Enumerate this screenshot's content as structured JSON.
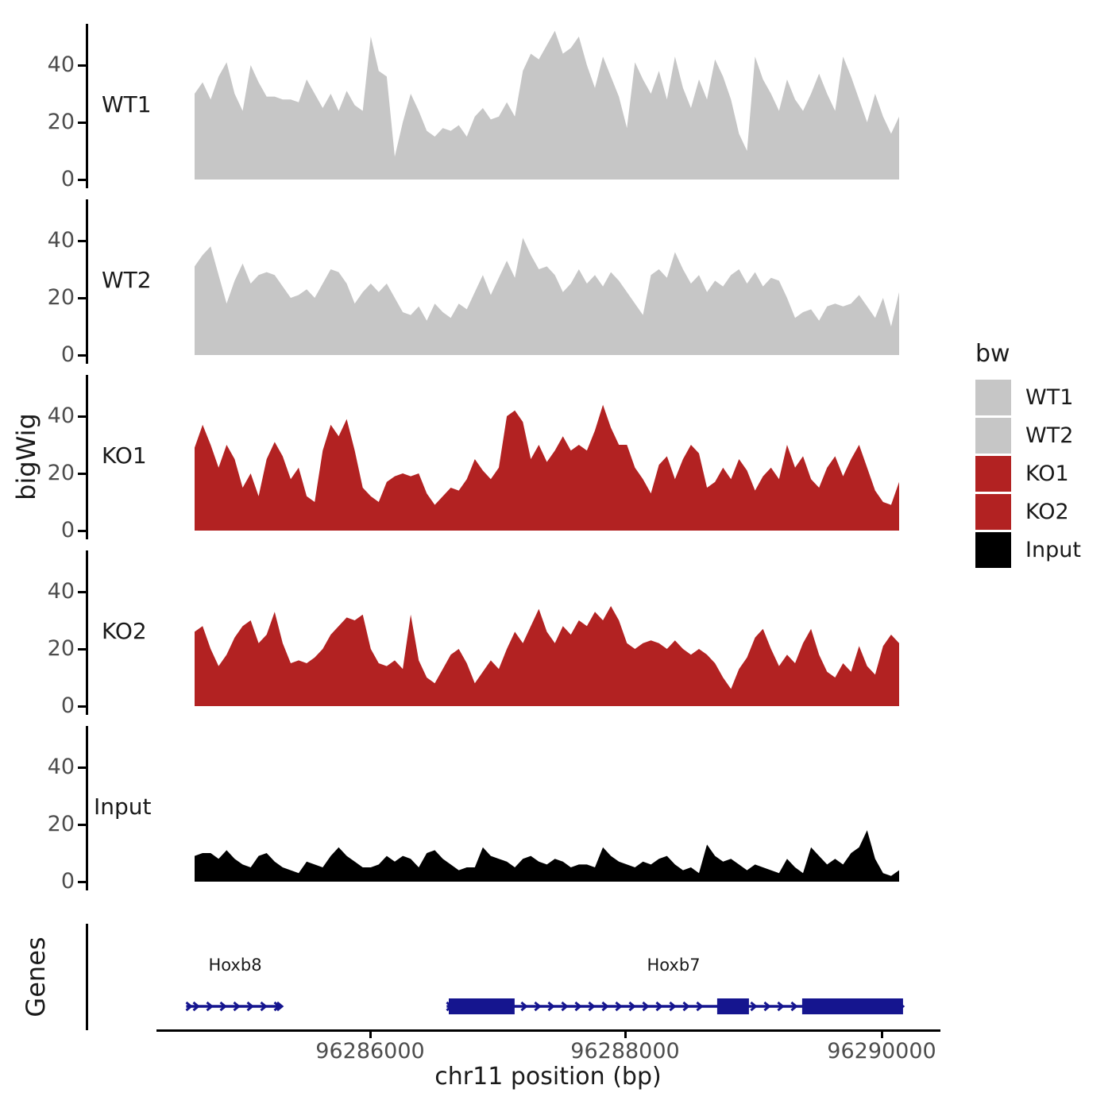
{
  "axes": {
    "y_title": "bigWig",
    "genes_title": "Genes",
    "x_title": "chr11 position (bp)",
    "y_tick_labels": [
      "40",
      "20",
      "0"
    ],
    "x_ticks": [
      {
        "label": "96286000",
        "bp": 96286000
      },
      {
        "label": "96288000",
        "bp": 96288000
      },
      {
        "label": "96290000",
        "bp": 96290000
      }
    ]
  },
  "legend": {
    "title": "bw",
    "entries": [
      {
        "label": "WT1",
        "color": "#C6C6C6"
      },
      {
        "label": "WT2",
        "color": "#C6C6C6"
      },
      {
        "label": "KO1",
        "color": "#B22222"
      },
      {
        "label": "KO2",
        "color": "#B22222"
      },
      {
        "label": "Input",
        "color": "#000000"
      }
    ]
  },
  "chart_data": {
    "type": "area",
    "title": "",
    "xlabel": "chr11 position (bp)",
    "ylabel": "bigWig",
    "x_start_bp": 96284630,
    "x_end_bp": 96290140,
    "x_step_bp": 62.6,
    "ylim": [
      0,
      54
    ],
    "yticks": [
      0,
      20,
      40
    ],
    "grid": false,
    "legend_position": "right",
    "tracks": [
      {
        "name": "WT1",
        "color": "#C6C6C6",
        "values": [
          30,
          34,
          28,
          36,
          41,
          30,
          24,
          40,
          34,
          29,
          29,
          28,
          28,
          27,
          35,
          30,
          25,
          30,
          24,
          31,
          26,
          24,
          50,
          38,
          36,
          8,
          20,
          30,
          24,
          17,
          15,
          18,
          17,
          19,
          15,
          22,
          25,
          21,
          22,
          27,
          22,
          38,
          44,
          42,
          47,
          52,
          44,
          46,
          50,
          40,
          32,
          43,
          36,
          29,
          18,
          41,
          35,
          30,
          38,
          28,
          43,
          32,
          25,
          35,
          28,
          42,
          36,
          28,
          16,
          10,
          43,
          35,
          30,
          24,
          35,
          28,
          24,
          30,
          37,
          30,
          24,
          43,
          36,
          28,
          20,
          30,
          22,
          16,
          22
        ]
      },
      {
        "name": "WT2",
        "color": "#C6C6C6",
        "values": [
          31,
          35,
          38,
          28,
          18,
          26,
          32,
          25,
          28,
          29,
          28,
          24,
          20,
          21,
          23,
          20,
          25,
          30,
          29,
          25,
          18,
          22,
          25,
          22,
          25,
          20,
          15,
          14,
          17,
          12,
          18,
          15,
          13,
          18,
          16,
          22,
          28,
          21,
          27,
          33,
          27,
          41,
          35,
          30,
          31,
          28,
          22,
          25,
          30,
          25,
          28,
          24,
          29,
          26,
          22,
          18,
          14,
          28,
          30,
          27,
          36,
          30,
          25,
          28,
          22,
          26,
          24,
          28,
          30,
          25,
          29,
          24,
          27,
          26,
          20,
          13,
          15,
          16,
          12,
          17,
          18,
          17,
          18,
          21,
          17,
          13,
          20,
          10,
          22
        ]
      },
      {
        "name": "KO1",
        "color": "#B22222",
        "values": [
          29,
          37,
          30,
          22,
          30,
          25,
          15,
          20,
          12,
          25,
          31,
          26,
          18,
          22,
          12,
          10,
          28,
          37,
          33,
          39,
          28,
          15,
          12,
          10,
          17,
          19,
          20,
          19,
          20,
          13,
          9,
          12,
          15,
          14,
          18,
          25,
          21,
          18,
          22,
          40,
          42,
          38,
          25,
          30,
          24,
          28,
          33,
          28,
          30,
          28,
          35,
          44,
          36,
          30,
          30,
          22,
          18,
          13,
          23,
          26,
          18,
          25,
          30,
          27,
          15,
          17,
          22,
          18,
          25,
          21,
          14,
          19,
          22,
          18,
          30,
          22,
          26,
          18,
          15,
          22,
          26,
          19,
          25,
          30,
          22,
          14,
          10,
          9,
          17
        ]
      },
      {
        "name": "KO2",
        "color": "#B22222",
        "values": [
          26,
          28,
          20,
          14,
          18,
          24,
          28,
          30,
          22,
          25,
          33,
          22,
          15,
          16,
          15,
          17,
          20,
          25,
          28,
          31,
          30,
          32,
          20,
          15,
          14,
          16,
          13,
          32,
          16,
          10,
          8,
          13,
          18,
          20,
          15,
          8,
          12,
          16,
          13,
          20,
          26,
          22,
          28,
          34,
          26,
          22,
          28,
          25,
          30,
          28,
          33,
          30,
          35,
          30,
          22,
          20,
          22,
          23,
          22,
          20,
          23,
          20,
          18,
          20,
          18,
          15,
          10,
          6,
          13,
          17,
          24,
          27,
          20,
          14,
          18,
          15,
          22,
          27,
          18,
          12,
          10,
          15,
          12,
          21,
          14,
          11,
          21,
          25,
          22
        ]
      },
      {
        "name": "Input",
        "color": "#000000",
        "values": [
          9,
          10,
          10,
          8,
          11,
          8,
          6,
          5,
          9,
          10,
          7,
          5,
          4,
          3,
          7,
          6,
          5,
          9,
          12,
          9,
          7,
          5,
          5,
          6,
          9,
          7,
          9,
          8,
          5,
          10,
          11,
          8,
          6,
          4,
          5,
          5,
          12,
          9,
          8,
          7,
          5,
          8,
          9,
          7,
          6,
          8,
          7,
          5,
          6,
          6,
          5,
          12,
          9,
          7,
          6,
          5,
          7,
          6,
          8,
          9,
          6,
          4,
          5,
          3,
          13,
          9,
          7,
          8,
          6,
          4,
          6,
          5,
          4,
          3,
          8,
          5,
          3,
          12,
          9,
          6,
          8,
          6,
          10,
          12,
          18,
          8,
          3,
          2,
          4
        ]
      }
    ],
    "genes": [
      {
        "name": "Hoxb8",
        "strand": "+",
        "start": 96284560,
        "end": 96285310,
        "exons": []
      },
      {
        "name": "Hoxb7",
        "strand": "+",
        "start": 96286600,
        "end": 96290174,
        "exons": [
          [
            96286616,
            96287132
          ],
          [
            96288718,
            96288967
          ],
          [
            96289384,
            96290174
          ]
        ]
      }
    ],
    "gene_color": "#15158F"
  }
}
